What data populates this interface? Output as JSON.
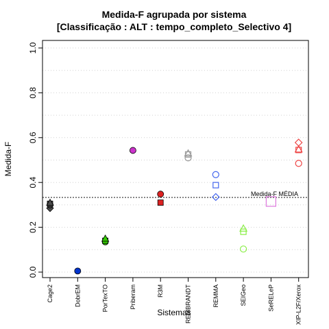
{
  "chart_data": {
    "type": "scatter",
    "title": "Medida-F agrupada por sistema",
    "subtitle": "[Classificação : ALT : tempo_completo_Selectivo 4]",
    "xlabel": "Sistemas",
    "ylabel": "Medida-F",
    "ylim": [
      0.0,
      1.0
    ],
    "yticks": [
      "0.0",
      "0.2",
      "0.4",
      "0.6",
      "0.8",
      "1.0"
    ],
    "grid": "horizontal-dotted",
    "categories": [
      "Cage2",
      "DobrEM",
      "PorTexTO",
      "Priberam",
      "R3M",
      "REMBRANDT",
      "REMMA",
      "SEIGeo",
      "SeRELeP",
      "XIP-L2F/Xerox"
    ],
    "reference_line": {
      "label": "Medida-F MÉDIA",
      "value": 0.333
    },
    "points": [
      {
        "category": "Cage2",
        "shape": "diamond",
        "filled": true,
        "color": "#4d4d4d",
        "y": 0.285
      },
      {
        "category": "Cage2",
        "shape": "circle",
        "filled": true,
        "color": "#4d4d4d",
        "y": 0.3
      },
      {
        "category": "Cage2",
        "shape": "square",
        "filled": true,
        "color": "#4d4d4d",
        "y": 0.305
      },
      {
        "category": "Cage2",
        "shape": "triangle",
        "filled": true,
        "color": "#4d4d4d",
        "y": 0.31
      },
      {
        "category": "DobrEM",
        "shape": "circle",
        "filled": true,
        "color": "#0033cc",
        "y": 0.005
      },
      {
        "category": "PorTexTO",
        "shape": "circle",
        "filled": true,
        "color": "#33cc00",
        "y": 0.135
      },
      {
        "category": "PorTexTO",
        "shape": "square",
        "filled": true,
        "color": "#33cc00",
        "y": 0.14
      },
      {
        "category": "PorTexTO",
        "shape": "triangle",
        "filled": true,
        "color": "#33cc00",
        "y": 0.15
      },
      {
        "category": "Priberam",
        "shape": "circle",
        "filled": true,
        "color": "#cc33cc",
        "y": 0.543
      },
      {
        "category": "R3M",
        "shape": "circle",
        "filled": true,
        "color": "#dd2222",
        "y": 0.348
      },
      {
        "category": "R3M",
        "shape": "square",
        "filled": true,
        "color": "#dd2222",
        "y": 0.31
      },
      {
        "category": "REMBRANDT",
        "shape": "circle",
        "filled": false,
        "color": "#999999",
        "y": 0.51
      },
      {
        "category": "REMBRANDT",
        "shape": "square",
        "filled": false,
        "color": "#999999",
        "y": 0.525
      },
      {
        "category": "REMBRANDT",
        "shape": "triangle",
        "filled": false,
        "color": "#999999",
        "y": 0.53
      },
      {
        "category": "REMMA",
        "shape": "circle",
        "filled": false,
        "color": "#4466ee",
        "y": 0.435
      },
      {
        "category": "REMMA",
        "shape": "square",
        "filled": false,
        "color": "#4466ee",
        "y": 0.388
      },
      {
        "category": "REMMA",
        "shape": "diamond",
        "filled": false,
        "color": "#4466ee",
        "y": 0.335
      },
      {
        "category": "SEIGeo",
        "shape": "circle",
        "filled": false,
        "color": "#88ee44",
        "y": 0.103
      },
      {
        "category": "SEIGeo",
        "shape": "square",
        "filled": false,
        "color": "#88ee44",
        "y": 0.18
      },
      {
        "category": "SEIGeo",
        "shape": "triangle",
        "filled": false,
        "color": "#88ee44",
        "y": 0.195
      },
      {
        "category": "SeRELeP",
        "shape": "square-large",
        "filled": false,
        "color": "#dd77dd",
        "y": 0.315
      },
      {
        "category": "XIP-L2F/Xerox",
        "shape": "circle",
        "filled": false,
        "color": "#ee4444",
        "y": 0.485
      },
      {
        "category": "XIP-L2F/Xerox",
        "shape": "square",
        "filled": false,
        "color": "#ee4444",
        "y": 0.545
      },
      {
        "category": "XIP-L2F/Xerox",
        "shape": "triangle",
        "filled": false,
        "color": "#ee4444",
        "y": 0.548
      },
      {
        "category": "XIP-L2F/Xerox",
        "shape": "diamond",
        "filled": false,
        "color": "#ee4444",
        "y": 0.578
      }
    ]
  }
}
